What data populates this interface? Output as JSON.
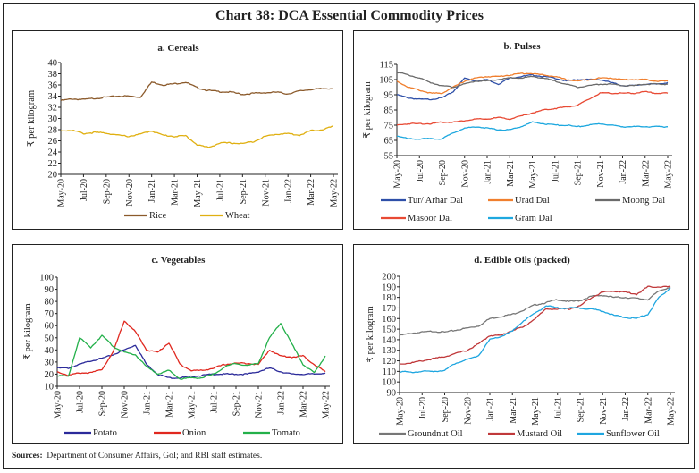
{
  "title": "Chart 38: DCA Essential Commodity Prices",
  "sources": {
    "label": "Sources:",
    "text": "Department of Consumer Affairs, GoI; and RBI staff estimates."
  },
  "chart_data": [
    {
      "type": "line",
      "title": "a. Cereals",
      "xlabel": "",
      "ylabel": "₹ per kilogram",
      "x": [
        "May-20",
        "Jun-20",
        "Jul-20",
        "Aug-20",
        "Sep-20",
        "Oct-20",
        "Nov-20",
        "Dec-20",
        "Jan-21",
        "Feb-21",
        "Mar-21",
        "Apr-21",
        "May-21",
        "Jun-21",
        "Jul-21",
        "Aug-21",
        "Sep-21",
        "Oct-21",
        "Nov-21",
        "Dec-21",
        "Jan-22",
        "Feb-22",
        "Mar-22",
        "Apr-22",
        "May-22"
      ],
      "xticks": [
        "May-20",
        "Jul-20",
        "Sep-20",
        "Nov-20",
        "Jan-21",
        "Mar-21",
        "May-21",
        "Jul-21",
        "Sep-21",
        "Nov-21",
        "Jan-22",
        "Mar-22",
        "May-22"
      ],
      "ylim": [
        20,
        40
      ],
      "yticks": [
        20,
        22,
        24,
        26,
        28,
        30,
        32,
        34,
        36,
        38,
        40
      ],
      "legend": "bottom",
      "series": [
        {
          "name": "Rice",
          "color": "#8B5A2B",
          "values": [
            33.2,
            33.5,
            33.4,
            33.6,
            33.8,
            34.0,
            34.0,
            33.8,
            36.5,
            36.0,
            36.2,
            36.5,
            35.5,
            35.0,
            34.8,
            34.7,
            34.3,
            34.5,
            34.6,
            34.7,
            34.4,
            34.9,
            35.2,
            35.3,
            35.4
          ]
        },
        {
          "name": "Wheat",
          "color": "#E0B012",
          "values": [
            27.8,
            27.9,
            27.3,
            27.5,
            27.4,
            27.0,
            26.8,
            27.2,
            27.8,
            27.0,
            26.8,
            26.9,
            25.3,
            24.8,
            25.6,
            25.6,
            25.5,
            25.9,
            26.8,
            27.2,
            27.3,
            27.0,
            27.8,
            28.0,
            28.6
          ]
        }
      ]
    },
    {
      "type": "line",
      "title": "b. Pulses",
      "xlabel": "",
      "ylabel": "₹ per kilogram",
      "x": [
        "May-20",
        "Jun-20",
        "Jul-20",
        "Aug-20",
        "Sep-20",
        "Oct-20",
        "Nov-20",
        "Dec-20",
        "Jan-21",
        "Feb-21",
        "Mar-21",
        "Apr-21",
        "May-21",
        "Jun-21",
        "Jul-21",
        "Aug-21",
        "Sep-21",
        "Oct-21",
        "Nov-21",
        "Dec-21",
        "Jan-22",
        "Feb-22",
        "Mar-22",
        "Apr-22",
        "May-22"
      ],
      "xticks": [
        "May-20",
        "Jul-20",
        "Sep-20",
        "Nov-20",
        "Jan-21",
        "Mar-21",
        "May-21",
        "Jul-21",
        "Sep-21",
        "Nov-21",
        "Jan-22",
        "Mar-22",
        "May-22"
      ],
      "ylim": [
        55,
        115
      ],
      "yticks": [
        55,
        65,
        75,
        85,
        95,
        105,
        115
      ],
      "legend": "bottom",
      "series": [
        {
          "name": "Tur/ Arhar Dal",
          "color": "#2E4FA8",
          "values": [
            95,
            93,
            92,
            92,
            93,
            97,
            106,
            104,
            105,
            102,
            106,
            107,
            108,
            107,
            106,
            104,
            105,
            105,
            105,
            103,
            101,
            101,
            102,
            102,
            103
          ]
        },
        {
          "name": "Urad Dal",
          "color": "#F07F2E",
          "values": [
            104,
            100,
            98,
            96,
            96,
            100,
            104,
            106,
            107,
            107,
            108,
            109,
            109,
            108,
            107,
            105,
            104,
            105,
            106,
            106,
            105,
            105,
            105,
            104,
            104
          ]
        },
        {
          "name": "Moong Dal",
          "color": "#6B6B6B",
          "values": [
            110,
            108,
            106,
            103,
            101,
            100,
            102,
            104,
            104,
            105,
            106,
            106,
            107,
            106,
            104,
            102,
            100,
            101,
            102,
            102,
            101,
            101,
            102,
            102,
            102
          ]
        },
        {
          "name": "Masoor Dal",
          "color": "#E84A34",
          "values": [
            75,
            76,
            76,
            76,
            77,
            77,
            78,
            79,
            79,
            80,
            79,
            81,
            83,
            85,
            86,
            87,
            88,
            92,
            96,
            96,
            96,
            96,
            97,
            96,
            96
          ]
        },
        {
          "name": "Gram Dal",
          "color": "#1EA8DF",
          "values": [
            68,
            66,
            66,
            66,
            66,
            70,
            73,
            74,
            73,
            72,
            72,
            74,
            77,
            76,
            75,
            75,
            74,
            75,
            76,
            75,
            74,
            74,
            74,
            74,
            74
          ]
        }
      ]
    },
    {
      "type": "line",
      "title": "c. Vegetables",
      "xlabel": "",
      "ylabel": "₹ per kilogram",
      "x": [
        "May-20",
        "Jun-20",
        "Jul-20",
        "Aug-20",
        "Sep-20",
        "Oct-20",
        "Nov-20",
        "Dec-20",
        "Jan-21",
        "Feb-21",
        "Mar-21",
        "Apr-21",
        "May-21",
        "Jun-21",
        "Jul-21",
        "Aug-21",
        "Sep-21",
        "Oct-21",
        "Nov-21",
        "Dec-21",
        "Jan-22",
        "Feb-22",
        "Mar-22",
        "Apr-22",
        "May-22"
      ],
      "xticks": [
        "May-20",
        "Jul-20",
        "Sep-20",
        "Nov-20",
        "Jan-21",
        "Mar-21",
        "May-21",
        "Jul-21",
        "Sep-21",
        "Nov-21",
        "Jan-22",
        "Mar-22",
        "May-22"
      ],
      "ylim": [
        10,
        100
      ],
      "yticks": [
        10,
        20,
        30,
        40,
        50,
        60,
        70,
        80,
        90,
        100
      ],
      "legend": "bottom",
      "series": [
        {
          "name": "Potato",
          "color": "#2B2A9A",
          "values": [
            25,
            25,
            28,
            31,
            33,
            36,
            40,
            44,
            28,
            20,
            17,
            17,
            18,
            19,
            20,
            20,
            20,
            20,
            22,
            25,
            22,
            20,
            20,
            20,
            21
          ]
        },
        {
          "name": "Onion",
          "color": "#E0281F",
          "values": [
            22,
            19,
            21,
            21,
            24,
            38,
            64,
            55,
            40,
            38,
            46,
            28,
            23,
            23,
            25,
            28,
            29,
            29,
            28,
            40,
            35,
            34,
            35,
            28,
            22
          ]
        },
        {
          "name": "Tomato",
          "color": "#23B04A",
          "values": [
            19,
            18,
            50,
            42,
            52,
            43,
            38,
            36,
            26,
            20,
            23,
            16,
            17,
            17,
            20,
            26,
            29,
            27,
            29,
            50,
            62,
            45,
            28,
            21,
            35
          ]
        }
      ]
    },
    {
      "type": "line",
      "title": "d. Edible Oils (packed)",
      "xlabel": "",
      "ylabel": "₹ per kilogram",
      "x": [
        "May-20",
        "Jun-20",
        "Jul-20",
        "Aug-20",
        "Sep-20",
        "Oct-20",
        "Nov-20",
        "Dec-20",
        "Jan-21",
        "Feb-21",
        "Mar-21",
        "Apr-21",
        "May-21",
        "Jun-21",
        "Jul-21",
        "Aug-21",
        "Sep-21",
        "Oct-21",
        "Nov-21",
        "Dec-21",
        "Jan-22",
        "Feb-22",
        "Mar-22",
        "Apr-22",
        "May-22"
      ],
      "xticks": [
        "May-20",
        "Jul-20",
        "Sep-20",
        "Nov-20",
        "Jan-21",
        "Mar-21",
        "May-21",
        "Jul-21",
        "Sep-21",
        "Nov-21",
        "Jan-22",
        "Mar-22",
        "May-22"
      ],
      "ylim": [
        90,
        200
      ],
      "yticks": [
        90,
        100,
        110,
        120,
        130,
        140,
        150,
        160,
        170,
        180,
        190,
        200
      ],
      "legend": "bottom",
      "series": [
        {
          "name": "Groundnut Oil",
          "color": "#777777",
          "values": [
            144,
            146,
            147,
            148,
            147,
            149,
            151,
            153,
            160,
            162,
            164,
            168,
            173,
            175,
            178,
            176,
            177,
            181,
            182,
            180,
            180,
            179,
            178,
            186,
            190
          ]
        },
        {
          "name": "Mustard Oil",
          "color": "#C0393B",
          "values": [
            117,
            118,
            120,
            122,
            124,
            127,
            130,
            136,
            144,
            144,
            149,
            152,
            160,
            169,
            169,
            169,
            172,
            180,
            185,
            186,
            185,
            183,
            190,
            190,
            190
          ]
        },
        {
          "name": "Sunflower Oil",
          "color": "#1FA6E0",
          "values": [
            110,
            109,
            110,
            110,
            111,
            118,
            121,
            125,
            140,
            143,
            148,
            158,
            165,
            172,
            170,
            170,
            170,
            169,
            167,
            163,
            161,
            160,
            164,
            180,
            189
          ]
        }
      ]
    }
  ]
}
